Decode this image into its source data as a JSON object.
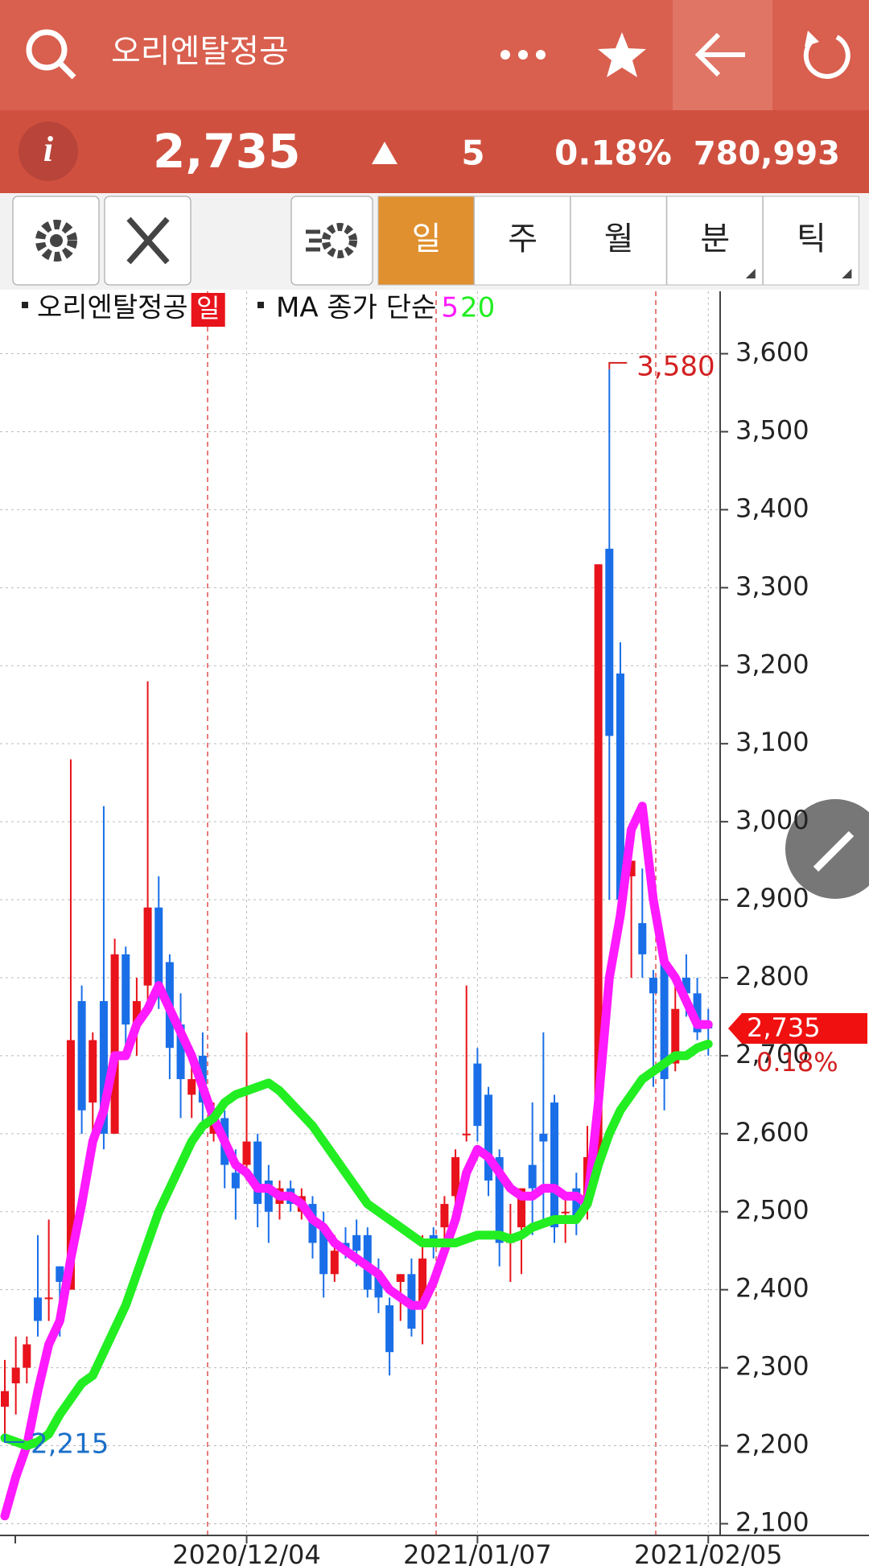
{
  "header": {
    "title": "오리엔탈정공",
    "price": "2,735",
    "change": "5",
    "rate": "0.18%",
    "volume": "780,993"
  },
  "tabs": [
    "일",
    "주",
    "월",
    "분",
    "틱"
  ],
  "chart_data": {
    "type": "candlestick",
    "legend": {
      "name": "오리엔탈정공",
      "period": "일",
      "ma": "MA 종가 단순"
    },
    "categories": [
      null,
      null,
      null,
      null,
      null,
      null,
      null,
      null,
      null,
      null,
      null,
      null,
      null,
      null,
      null,
      null,
      null,
      null,
      null,
      null,
      null,
      null,
      "2020/12/04",
      null,
      null,
      null,
      null,
      null,
      null,
      null,
      null,
      null,
      null,
      null,
      null,
      null,
      null,
      null,
      null,
      null,
      null,
      null,
      null,
      "2021/01/07",
      null,
      null,
      null,
      null,
      null,
      null,
      null,
      null,
      null,
      null,
      null,
      null,
      null,
      null,
      null,
      null,
      null,
      null,
      null,
      null,
      "2021/02/05"
    ],
    "open": [
      2250,
      2280,
      2300,
      2390,
      2390,
      2430,
      2400,
      2770,
      2640,
      2770,
      2600,
      2830,
      2740,
      2790,
      2890,
      2820,
      2740,
      2650,
      2700,
      2600,
      2620,
      2550,
      2560,
      2590,
      2540,
      2510,
      2530,
      2500,
      2510,
      2480,
      2420,
      2460,
      2470,
      2470,
      2420,
      2380,
      2410,
      2420,
      2380,
      2470,
      2480,
      2520,
      2600,
      2690,
      2650,
      2570,
      2460,
      2480,
      2560,
      2600,
      2640,
      2500,
      2530,
      2510,
      2570,
      3350,
      3190,
      2930,
      2870,
      2800,
      2820,
      2690,
      2800,
      2780,
      2740
    ],
    "high": [
      2310,
      2340,
      2340,
      2470,
      2490,
      2430,
      3080,
      2790,
      2730,
      3020,
      2850,
      2840,
      2800,
      3180,
      2930,
      2830,
      2780,
      2700,
      2730,
      2640,
      2630,
      2580,
      2730,
      2600,
      2560,
      2540,
      2540,
      2530,
      2520,
      2500,
      2470,
      2480,
      2490,
      2480,
      2440,
      2390,
      2420,
      2440,
      2470,
      2480,
      2520,
      2580,
      2790,
      2710,
      2660,
      2580,
      2510,
      2530,
      2640,
      2730,
      2650,
      2520,
      2550,
      2610,
      3330,
      3580,
      3230,
      2950,
      2940,
      2810,
      2830,
      2800,
      2830,
      2800,
      2760
    ],
    "low": [
      2215,
      2240,
      2280,
      2340,
      2360,
      2340,
      2400,
      2600,
      2580,
      2580,
      2600,
      2700,
      2700,
      2760,
      2760,
      2670,
      2620,
      2620,
      2600,
      2590,
      2530,
      2490,
      2540,
      2480,
      2460,
      2490,
      2500,
      2490,
      2440,
      2390,
      2410,
      2440,
      2430,
      2390,
      2370,
      2290,
      2360,
      2340,
      2330,
      2440,
      2460,
      2490,
      2590,
      2590,
      2520,
      2430,
      2410,
      2420,
      2470,
      2480,
      2460,
      2460,
      2470,
      2490,
      2560,
      2900,
      2880,
      2800,
      2800,
      2660,
      2630,
      2680,
      2750,
      2720,
      2700
    ],
    "close": [
      2270,
      2300,
      2330,
      2360,
      2390,
      2410,
      2720,
      2630,
      2720,
      2600,
      2830,
      2740,
      2770,
      2890,
      2780,
      2710,
      2670,
      2670,
      2640,
      2620,
      2560,
      2530,
      2590,
      2510,
      2500,
      2530,
      2510,
      2520,
      2460,
      2420,
      2450,
      2450,
      2450,
      2400,
      2390,
      2320,
      2420,
      2350,
      2440,
      2460,
      2510,
      2570,
      2600,
      2610,
      2540,
      2460,
      2470,
      2530,
      2530,
      2590,
      2480,
      2500,
      2490,
      2570,
      3330,
      3110,
      2900,
      2950,
      2830,
      2780,
      2670,
      2760,
      2780,
      2730,
      2735
    ],
    "up_color": "#e8131b",
    "down_color": "#1a6fe8",
    "series": [
      {
        "name": "5",
        "color": "#ff1aff",
        "values": [
          2110,
          2160,
          2200,
          2270,
          2330,
          2360,
          2440,
          2510,
          2590,
          2630,
          2700,
          2700,
          2740,
          2760,
          2790,
          2760,
          2730,
          2700,
          2660,
          2620,
          2590,
          2560,
          2550,
          2530,
          2530,
          2520,
          2520,
          2510,
          2490,
          2480,
          2460,
          2450,
          2440,
          2430,
          2420,
          2400,
          2390,
          2380,
          2380,
          2410,
          2450,
          2490,
          2550,
          2580,
          2570,
          2550,
          2530,
          2520,
          2520,
          2530,
          2530,
          2520,
          2520,
          2510,
          2640,
          2800,
          2880,
          2990,
          3020,
          2900,
          2820,
          2800,
          2770,
          2740,
          2740
        ]
      },
      {
        "name": "20",
        "color": "#22ee22",
        "values": [
          2210,
          2205,
          2200,
          2205,
          2215,
          2240,
          2260,
          2280,
          2290,
          2320,
          2350,
          2380,
          2420,
          2460,
          2500,
          2530,
          2560,
          2590,
          2610,
          2620,
          2640,
          2650,
          2655,
          2660,
          2665,
          2655,
          2640,
          2625,
          2610,
          2590,
          2570,
          2550,
          2530,
          2510,
          2500,
          2490,
          2480,
          2470,
          2460,
          2460,
          2460,
          2460,
          2465,
          2470,
          2470,
          2470,
          2465,
          2470,
          2480,
          2485,
          2490,
          2490,
          2490,
          2510,
          2560,
          2600,
          2630,
          2650,
          2670,
          2680,
          2690,
          2700,
          2700,
          2710,
          2715
        ]
      }
    ],
    "ylim": [
      2085,
      3680
    ],
    "yticks": [
      {
        "value": 2100,
        "label": "2,100"
      },
      {
        "value": 2200,
        "label": "2,200"
      },
      {
        "value": 2300,
        "label": "2,300"
      },
      {
        "value": 2400,
        "label": "2,400"
      },
      {
        "value": 2500,
        "label": "2,500"
      },
      {
        "value": 2600,
        "label": "2,600"
      },
      {
        "value": 2700,
        "label": "2,700"
      },
      {
        "value": 2800,
        "label": "2,800"
      },
      {
        "value": 2900,
        "label": "2,900"
      },
      {
        "value": 3000,
        "label": "3,000"
      },
      {
        "value": 3100,
        "label": "3,100"
      },
      {
        "value": 3200,
        "label": "3,200"
      },
      {
        "value": 3300,
        "label": "3,300"
      },
      {
        "value": 3400,
        "label": "3,400"
      },
      {
        "value": 3500,
        "label": "3,500"
      },
      {
        "value": 3600,
        "label": "3,600"
      }
    ],
    "grid": true,
    "max_label": {
      "value": 3580,
      "label": "3,580"
    },
    "min_label": {
      "value": 2215,
      "label": "2,215"
    },
    "last_label": {
      "value": 2735,
      "label": "2,735"
    },
    "last_rate": "0.18%"
  }
}
